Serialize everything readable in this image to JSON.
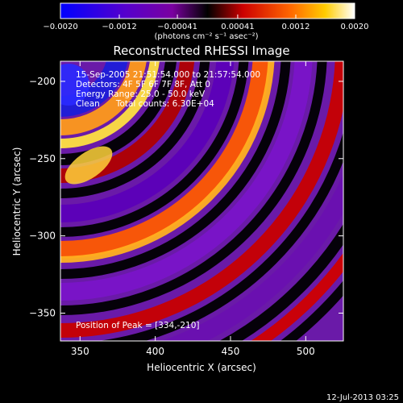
{
  "chart_data": {
    "type": "heatmap",
    "title": "Reconstructed RHESSI Image",
    "xlabel": "Heliocentric X (arcsec)",
    "ylabel": "Heliocentric Y (arcsec)",
    "xlim": [
      337,
      525
    ],
    "ylim": [
      -368,
      -187
    ],
    "x_ticks": [
      350,
      400,
      450,
      500
    ],
    "x_tick_labels": [
      "350",
      "400",
      "450",
      "500"
    ],
    "y_ticks": [
      -200,
      -250,
      -300,
      -350
    ],
    "y_tick_labels": [
      "−200",
      "−250",
      "−300",
      "−350"
    ],
    "colorbar": {
      "ticks": [
        -0.002,
        -0.0012,
        -0.00041,
        0.00041,
        0.0012,
        0.002
      ],
      "tick_labels": [
        "−0.0020",
        "−0.0012",
        "−0.00041",
        "0.00041",
        "0.0012",
        "0.0020"
      ],
      "unit": "(photons cm⁻² s⁻¹ asec⁻²)",
      "colors": [
        "#0000ff",
        "#5500cc",
        "#7a00a0",
        "#000000",
        "#cc0000",
        "#ff6600",
        "#ffcc00",
        "#ffffff"
      ]
    },
    "peak": [
      334,
      -210
    ],
    "annotations": {
      "time": "15-Sep-2005 21:51:54.000 to 21:57:54.000",
      "detectors": "Detectors: 4F 5F 6F 7F 8F, Att 0",
      "energy": "Energy Range: 25.0 - 50.0 keV",
      "clean": "Clean      Total counts: 6.30E+04",
      "peak_text": "Position of Peak = [334,-210]"
    },
    "footer_date": "12-Jul-2013 03:25"
  }
}
